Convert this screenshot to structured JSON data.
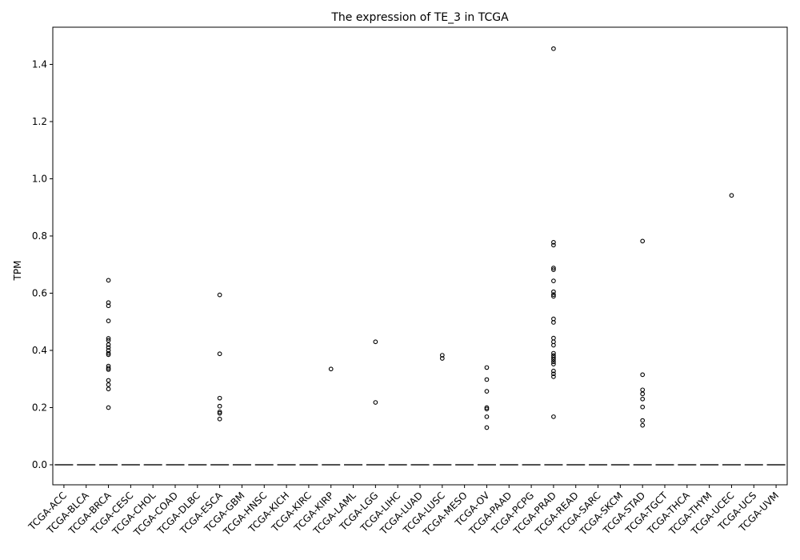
{
  "chart_data": {
    "type": "box",
    "title": "The expression of TE_3 in TCGA",
    "xlabel": "",
    "ylabel": "TPM",
    "ylim": [
      -0.07,
      1.53
    ],
    "yticks": [
      0.0,
      0.2,
      0.4,
      0.6,
      0.8,
      1.0,
      1.2,
      1.4
    ],
    "ytick_labels": [
      "0.0",
      "0.2",
      "0.4",
      "0.6",
      "0.8",
      "1.0",
      "1.2",
      "1.4"
    ],
    "grid": false,
    "categories": [
      "TCGA-ACC",
      "TCGA-BLCA",
      "TCGA-BRCA",
      "TCGA-CESC",
      "TCGA-CHOL",
      "TCGA-COAD",
      "TCGA-DLBC",
      "TCGA-ESCA",
      "TCGA-GBM",
      "TCGA-HNSC",
      "TCGA-KICH",
      "TCGA-KIRC",
      "TCGA-KIRP",
      "TCGA-LAML",
      "TCGA-LGG",
      "TCGA-LIHC",
      "TCGA-LUAD",
      "TCGA-LUSC",
      "TCGA-MESO",
      "TCGA-OV",
      "TCGA-PAAD",
      "TCGA-PCPG",
      "TCGA-PRAD",
      "TCGA-READ",
      "TCGA-SARC",
      "TCGA-SKCM",
      "TCGA-STAD",
      "TCGA-TGCT",
      "TCGA-THCA",
      "TCGA-THYM",
      "TCGA-UCEC",
      "TCGA-UCS",
      "TCGA-UVM"
    ],
    "median": [
      0,
      0,
      0,
      0,
      0,
      0,
      0,
      0,
      0,
      0,
      0,
      0,
      0,
      0,
      0,
      0,
      0,
      0,
      0,
      0,
      0,
      0,
      0,
      0,
      0,
      0,
      0,
      0,
      0,
      0,
      0,
      0,
      0
    ],
    "outliers": [
      [],
      [],
      [
        0.645,
        0.567,
        0.556,
        0.503,
        0.442,
        0.435,
        0.42,
        0.41,
        0.4,
        0.39,
        0.385,
        0.345,
        0.338,
        0.333,
        0.295,
        0.28,
        0.265,
        0.2
      ],
      [],
      [],
      [],
      [],
      [
        0.594,
        0.388,
        0.233,
        0.205,
        0.185,
        0.18,
        0.16
      ],
      [],
      [],
      [],
      [],
      [
        0.335
      ],
      [],
      [
        0.43,
        0.218
      ],
      [],
      [],
      [
        0.383,
        0.372
      ],
      [],
      [
        0.34,
        0.298,
        0.257,
        0.2,
        0.195,
        0.168,
        0.13
      ],
      [],
      [],
      [
        1.455,
        0.778,
        0.768,
        0.688,
        0.682,
        0.643,
        0.605,
        0.595,
        0.589,
        0.51,
        0.498,
        0.443,
        0.43,
        0.418,
        0.39,
        0.382,
        0.375,
        0.368,
        0.36,
        0.352,
        0.328,
        0.318,
        0.308,
        0.168
      ],
      [],
      [],
      [],
      [
        0.782,
        0.315,
        0.262,
        0.248,
        0.23,
        0.202,
        0.155,
        0.138
      ],
      [],
      [],
      [],
      [
        0.942
      ],
      [],
      []
    ]
  }
}
